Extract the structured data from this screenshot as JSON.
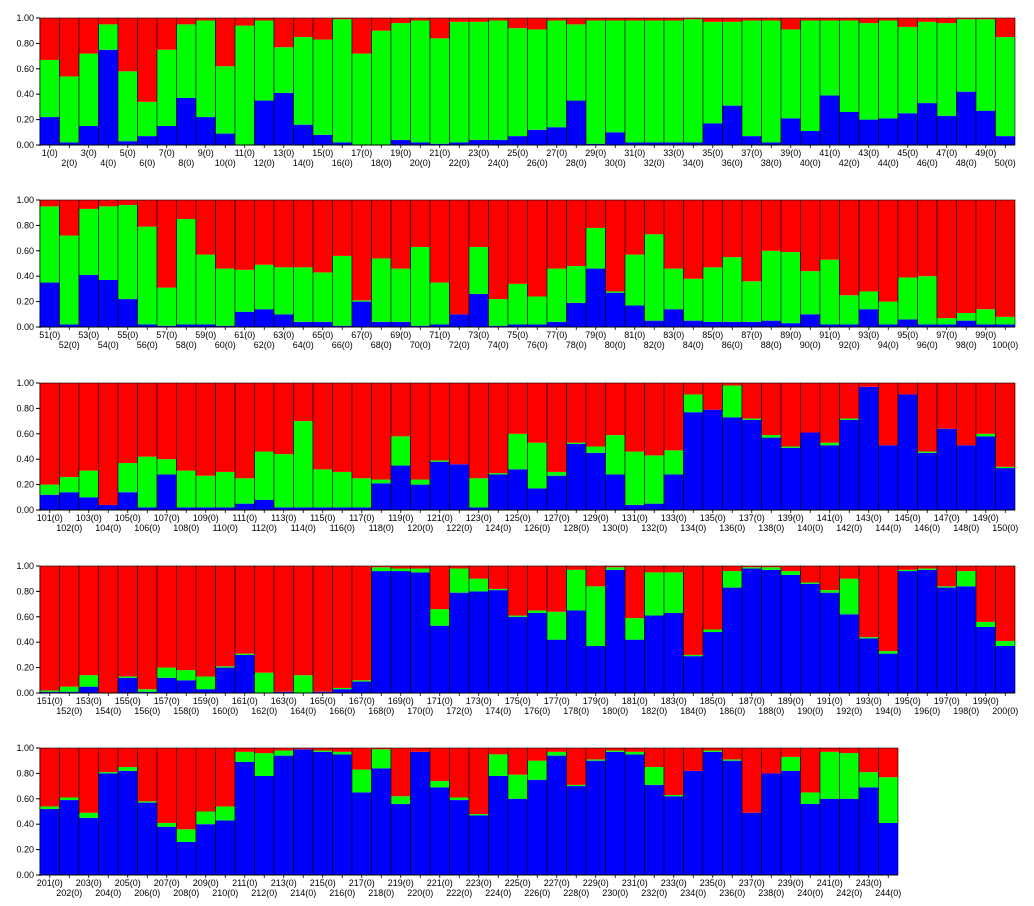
{
  "colors": {
    "blue": "#0000ff",
    "green": "#00ff00",
    "red": "#ff0000"
  },
  "chart_data": {
    "type": "bar",
    "stacked": true,
    "series_order_bottom_to_top": [
      "blue",
      "green",
      "red"
    ],
    "grid": false,
    "legend": "none",
    "ylim": [
      0,
      1
    ],
    "y_ticks": [
      "0.00",
      "0.20",
      "0.40",
      "0.60",
      "0.80",
      "1.00"
    ],
    "tick_label_suffix": "(0)",
    "panels": [
      {
        "start": 1,
        "n": 50,
        "blue": [
          0.22,
          0.02,
          0.15,
          0.75,
          0.03,
          0.07,
          0.15,
          0.37,
          0.22,
          0.09,
          0.0,
          0.35,
          0.41,
          0.16,
          0.08,
          0.02,
          0.0,
          0.0,
          0.04,
          0.02,
          0.01,
          0.02,
          0.04,
          0.04,
          0.07,
          0.12,
          0.14,
          0.35,
          0.01,
          0.1,
          0.02,
          0.02,
          0.02,
          0.02,
          0.17,
          0.31,
          0.07,
          0.02,
          0.21,
          0.11,
          0.39,
          0.26,
          0.2,
          0.21,
          0.25,
          0.33,
          0.23,
          0.42,
          0.27,
          0.07
        ],
        "green": [
          0.45,
          0.52,
          0.57,
          0.2,
          0.55,
          0.27,
          0.6,
          0.58,
          0.76,
          0.53,
          0.94,
          0.63,
          0.36,
          0.69,
          0.75,
          0.97,
          0.72,
          0.9,
          0.92,
          0.96,
          0.83,
          0.95,
          0.93,
          0.94,
          0.85,
          0.79,
          0.84,
          0.6,
          0.97,
          0.88,
          0.96,
          0.96,
          0.96,
          0.97,
          0.8,
          0.66,
          0.91,
          0.96,
          0.7,
          0.87,
          0.59,
          0.72,
          0.76,
          0.77,
          0.68,
          0.64,
          0.73,
          0.57,
          0.72,
          0.78
        ]
      },
      {
        "start": 51,
        "n": 50,
        "blue": [
          0.35,
          0.02,
          0.41,
          0.37,
          0.22,
          0.02,
          0.01,
          0.02,
          0.02,
          0.01,
          0.12,
          0.14,
          0.1,
          0.04,
          0.04,
          0.01,
          0.2,
          0.04,
          0.04,
          0.01,
          0.02,
          0.1,
          0.26,
          0.01,
          0.02,
          0.02,
          0.04,
          0.19,
          0.46,
          0.27,
          0.17,
          0.05,
          0.14,
          0.05,
          0.04,
          0.04,
          0.04,
          0.05,
          0.03,
          0.1,
          0.02,
          0.02,
          0.14,
          0.02,
          0.06,
          0.02,
          0.02,
          0.05,
          0.02,
          0.02
        ],
        "green": [
          0.6,
          0.7,
          0.52,
          0.58,
          0.74,
          0.77,
          0.3,
          0.83,
          0.55,
          0.45,
          0.33,
          0.35,
          0.37,
          0.43,
          0.39,
          0.55,
          0.01,
          0.5,
          0.42,
          0.62,
          0.33,
          0.0,
          0.37,
          0.21,
          0.32,
          0.22,
          0.42,
          0.29,
          0.32,
          0.01,
          0.4,
          0.68,
          0.32,
          0.33,
          0.43,
          0.51,
          0.32,
          0.55,
          0.56,
          0.34,
          0.51,
          0.23,
          0.14,
          0.18,
          0.33,
          0.38,
          0.05,
          0.06,
          0.12,
          0.06
        ]
      },
      {
        "start": 101,
        "n": 50,
        "blue": [
          0.12,
          0.14,
          0.1,
          0.04,
          0.14,
          0.02,
          0.28,
          0.02,
          0.02,
          0.02,
          0.05,
          0.08,
          0.02,
          0.02,
          0.02,
          0.02,
          0.02,
          0.21,
          0.35,
          0.2,
          0.38,
          0.36,
          0.02,
          0.28,
          0.32,
          0.17,
          0.27,
          0.52,
          0.45,
          0.28,
          0.04,
          0.05,
          0.28,
          0.77,
          0.79,
          0.73,
          0.71,
          0.57,
          0.49,
          0.61,
          0.51,
          0.71,
          0.97,
          0.51,
          0.91,
          0.45,
          0.64,
          0.51,
          0.58,
          0.33
        ],
        "green": [
          0.08,
          0.12,
          0.21,
          0.0,
          0.23,
          0.4,
          0.12,
          0.29,
          0.25,
          0.28,
          0.2,
          0.38,
          0.42,
          0.68,
          0.3,
          0.28,
          0.23,
          0.03,
          0.23,
          0.04,
          0.01,
          0.0,
          0.23,
          0.01,
          0.28,
          0.36,
          0.03,
          0.01,
          0.05,
          0.31,
          0.42,
          0.38,
          0.19,
          0.14,
          0.0,
          0.25,
          0.01,
          0.02,
          0.01,
          0.0,
          0.02,
          0.01,
          0.0,
          0.0,
          0.0,
          0.01,
          0.0,
          0.0,
          0.02,
          0.01
        ]
      },
      {
        "start": 151,
        "n": 50,
        "blue": [
          0.01,
          0.01,
          0.05,
          0.0,
          0.12,
          0.01,
          0.12,
          0.1,
          0.03,
          0.2,
          0.3,
          0.0,
          0.01,
          0.0,
          0.01,
          0.03,
          0.09,
          0.96,
          0.96,
          0.95,
          0.53,
          0.79,
          0.8,
          0.81,
          0.6,
          0.63,
          0.42,
          0.65,
          0.37,
          0.97,
          0.42,
          0.61,
          0.63,
          0.29,
          0.48,
          0.83,
          0.98,
          0.97,
          0.93,
          0.86,
          0.79,
          0.62,
          0.43,
          0.31,
          0.96,
          0.97,
          0.83,
          0.84,
          0.52,
          0.37
        ],
        "green": [
          0.01,
          0.04,
          0.09,
          0.0,
          0.01,
          0.02,
          0.08,
          0.08,
          0.1,
          0.01,
          0.01,
          0.16,
          0.0,
          0.14,
          0.0,
          0.01,
          0.01,
          0.03,
          0.02,
          0.03,
          0.13,
          0.19,
          0.1,
          0.01,
          0.01,
          0.02,
          0.22,
          0.32,
          0.47,
          0.02,
          0.17,
          0.34,
          0.32,
          0.01,
          0.02,
          0.13,
          0.01,
          0.02,
          0.03,
          0.01,
          0.02,
          0.28,
          0.01,
          0.02,
          0.01,
          0.01,
          0.01,
          0.12,
          0.04,
          0.04
        ]
      },
      {
        "start": 201,
        "n": 44,
        "blue": [
          0.52,
          0.59,
          0.45,
          0.8,
          0.82,
          0.57,
          0.38,
          0.26,
          0.4,
          0.43,
          0.89,
          0.78,
          0.94,
          0.99,
          0.97,
          0.95,
          0.65,
          0.84,
          0.56,
          0.97,
          0.69,
          0.59,
          0.47,
          0.78,
          0.6,
          0.75,
          0.94,
          0.7,
          0.9,
          0.97,
          0.95,
          0.71,
          0.62,
          0.82,
          0.97,
          0.9,
          0.49,
          0.8,
          0.82,
          0.56,
          0.6,
          0.6,
          0.69,
          0.41
        ],
        "green": [
          0.02,
          0.02,
          0.04,
          0.01,
          0.03,
          0.01,
          0.03,
          0.1,
          0.1,
          0.11,
          0.08,
          0.18,
          0.04,
          0.0,
          0.01,
          0.02,
          0.18,
          0.15,
          0.06,
          0.0,
          0.05,
          0.02,
          0.01,
          0.17,
          0.19,
          0.15,
          0.03,
          0.01,
          0.01,
          0.01,
          0.02,
          0.14,
          0.01,
          0.0,
          0.01,
          0.01,
          0.0,
          0.0,
          0.11,
          0.09,
          0.37,
          0.36,
          0.12,
          0.36
        ]
      }
    ]
  }
}
